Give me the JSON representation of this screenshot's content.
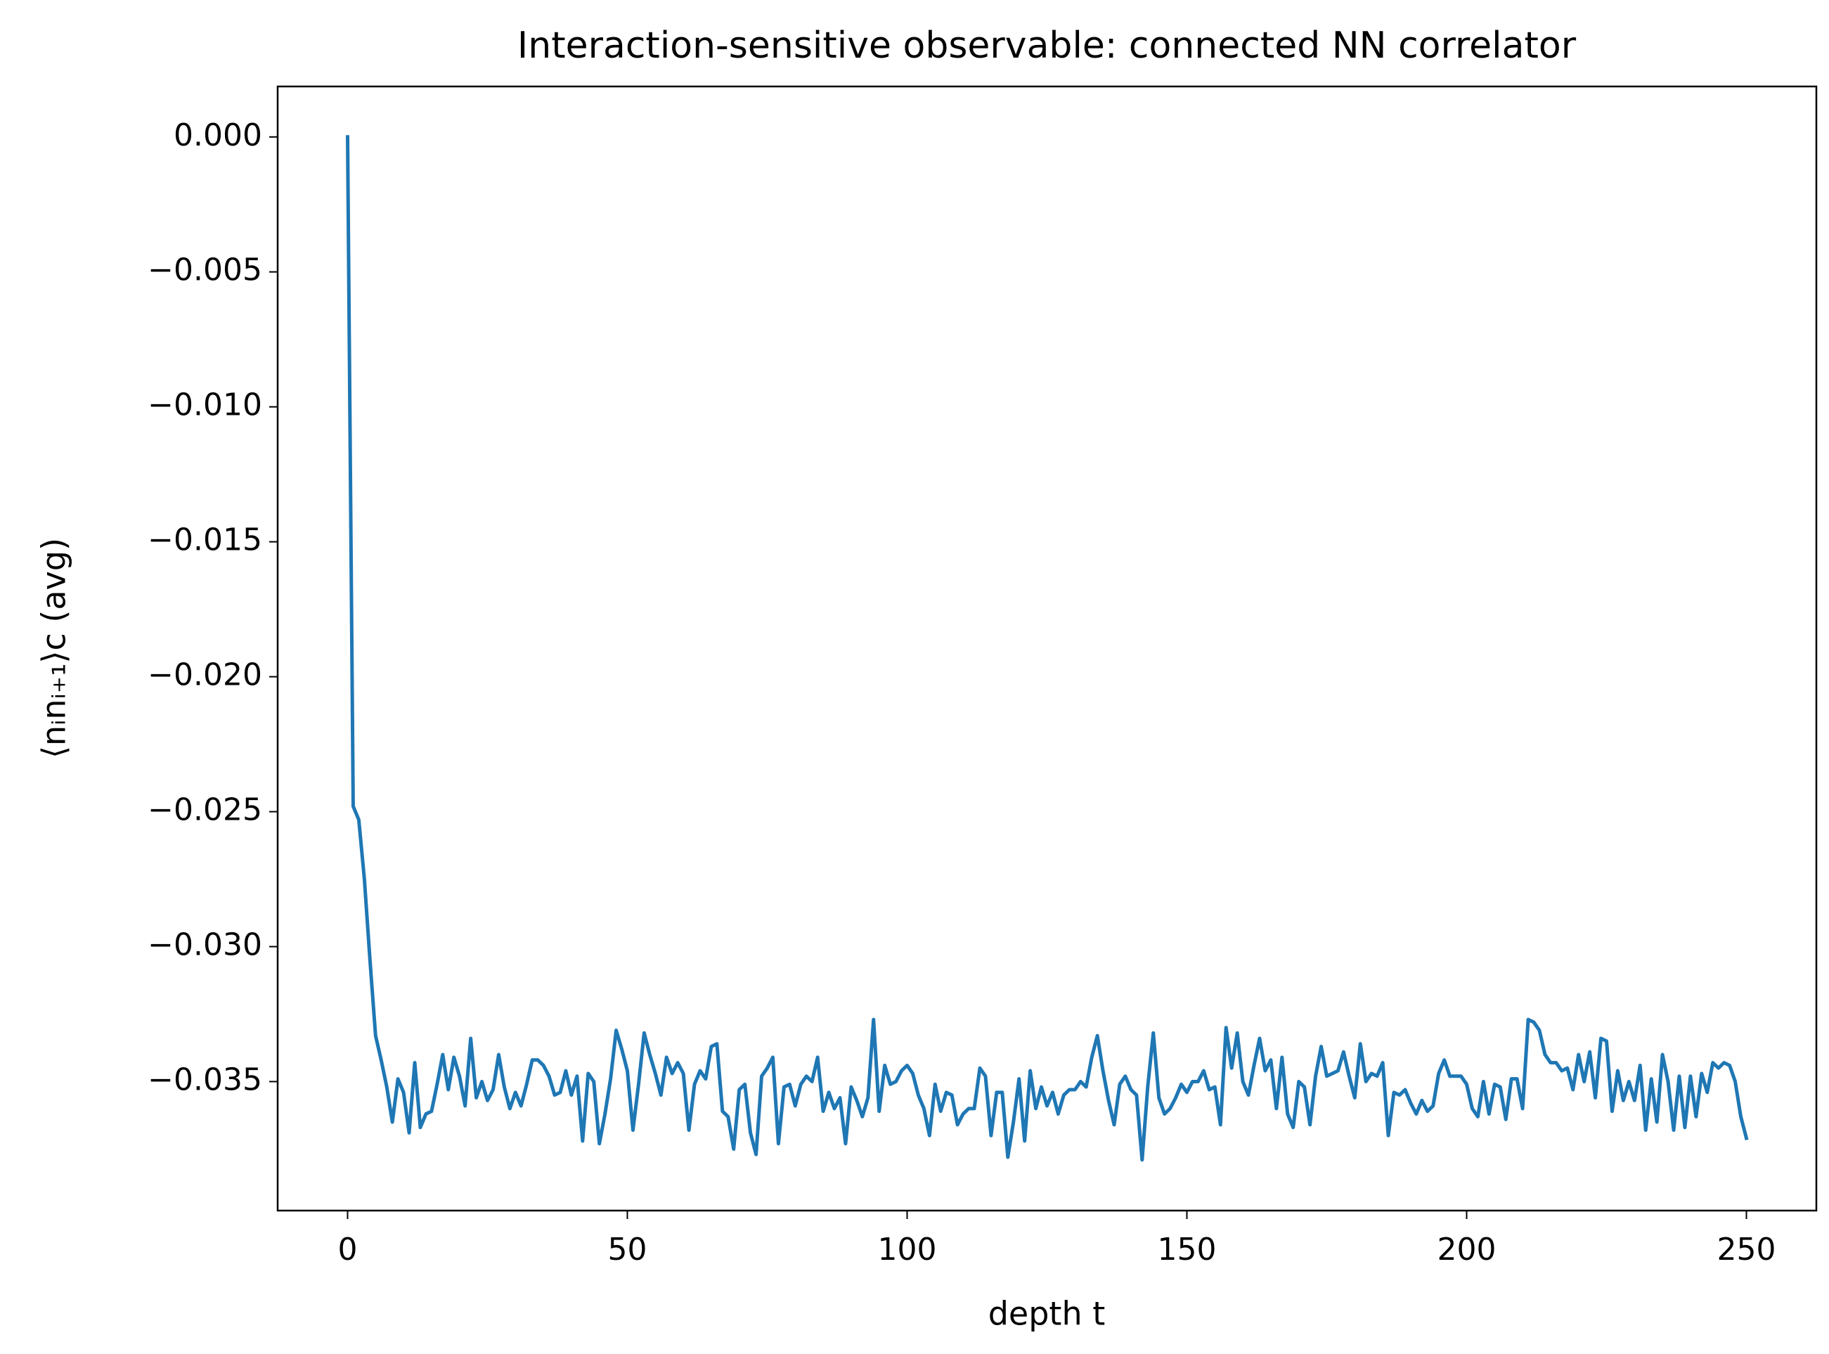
{
  "chart_data": {
    "type": "line",
    "title": "Interaction-sensitive observable: connected NN correlator",
    "xlabel": "depth t",
    "ylabel": "⟨nᵢnᵢ₊₁⟩c (avg)",
    "color": "#1f77b4",
    "xlim": [
      -12.5,
      262.5
    ],
    "ylim": [
      -0.03978,
      0.00187
    ],
    "xticks": [
      0,
      50,
      100,
      150,
      200,
      250
    ],
    "yticks": [
      {
        "value": 0,
        "label": "0.000"
      },
      {
        "value": -0.005,
        "label": "−0.005"
      },
      {
        "value": -0.01,
        "label": "−0.010"
      },
      {
        "value": -0.015,
        "label": "−0.015"
      },
      {
        "value": -0.02,
        "label": "−0.020"
      },
      {
        "value": -0.025,
        "label": "−0.025"
      },
      {
        "value": -0.03,
        "label": "−0.030"
      },
      {
        "value": -0.035,
        "label": "−0.035"
      }
    ],
    "x": [
      0,
      1,
      2,
      3,
      4,
      5,
      6,
      7,
      8,
      9,
      10,
      11,
      12,
      13,
      14,
      15,
      16,
      17,
      18,
      19,
      20,
      21,
      22,
      23,
      24,
      25,
      26,
      27,
      28,
      29,
      30,
      31,
      32,
      33,
      34,
      35,
      36,
      37,
      38,
      39,
      40,
      41,
      42,
      43,
      44,
      45,
      46,
      47,
      48,
      49,
      50,
      51,
      52,
      53,
      54,
      55,
      56,
      57,
      58,
      59,
      60,
      61,
      62,
      63,
      64,
      65,
      66,
      67,
      68,
      69,
      70,
      71,
      72,
      73,
      74,
      75,
      76,
      77,
      78,
      79,
      80,
      81,
      82,
      83,
      84,
      85,
      86,
      87,
      88,
      89,
      90,
      91,
      92,
      93,
      94,
      95,
      96,
      97,
      98,
      99,
      100,
      101,
      102,
      103,
      104,
      105,
      106,
      107,
      108,
      109,
      110,
      111,
      112,
      113,
      114,
      115,
      116,
      117,
      118,
      119,
      120,
      121,
      122,
      123,
      124,
      125,
      126,
      127,
      128,
      129,
      130,
      131,
      132,
      133,
      134,
      135,
      136,
      137,
      138,
      139,
      140,
      141,
      142,
      143,
      144,
      145,
      146,
      147,
      148,
      149,
      150,
      151,
      152,
      153,
      154,
      155,
      156,
      157,
      158,
      159,
      160,
      161,
      162,
      163,
      164,
      165,
      166,
      167,
      168,
      169,
      170,
      171,
      172,
      173,
      174,
      175,
      176,
      177,
      178,
      179,
      180,
      181,
      182,
      183,
      184,
      185,
      186,
      187,
      188,
      189,
      190,
      191,
      192,
      193,
      194,
      195,
      196,
      197,
      198,
      199,
      200,
      201,
      202,
      203,
      204,
      205,
      206,
      207,
      208,
      209,
      210,
      211,
      212,
      213,
      214,
      215,
      216,
      217,
      218,
      219,
      220,
      221,
      222,
      223,
      224,
      225,
      226,
      227,
      228,
      229,
      230,
      231,
      232,
      233,
      234,
      235,
      236,
      237,
      238,
      239,
      240,
      241,
      242,
      243,
      244,
      245,
      246,
      247,
      248,
      249,
      250
    ],
    "values": [
      0,
      -0.0248,
      -0.0253,
      -0.0275,
      -0.0305,
      -0.0333,
      -0.0342,
      -0.0352,
      -0.0365,
      -0.0349,
      -0.0354,
      -0.0369,
      -0.0343,
      -0.0367,
      -0.0362,
      -0.0361,
      -0.0351,
      -0.034,
      -0.0353,
      -0.0341,
      -0.0348,
      -0.0359,
      -0.0334,
      -0.0356,
      -0.035,
      -0.0357,
      -0.0353,
      -0.034,
      -0.0352,
      -0.036,
      -0.0354,
      -0.0359,
      -0.0351,
      -0.0342,
      -0.0342,
      -0.0344,
      -0.0348,
      -0.0355,
      -0.0354,
      -0.0346,
      -0.0355,
      -0.0348,
      -0.0372,
      -0.0347,
      -0.035,
      -0.0373,
      -0.0362,
      -0.0349,
      -0.0331,
      -0.0338,
      -0.0346,
      -0.0368,
      -0.0351,
      -0.0332,
      -0.034,
      -0.0347,
      -0.0355,
      -0.0341,
      -0.0347,
      -0.0343,
      -0.0347,
      -0.0368,
      -0.0351,
      -0.0346,
      -0.0349,
      -0.0337,
      -0.0336,
      -0.0361,
      -0.0363,
      -0.0375,
      -0.0353,
      -0.0351,
      -0.0369,
      -0.0377,
      -0.0348,
      -0.0345,
      -0.0341,
      -0.0373,
      -0.0352,
      -0.0351,
      -0.0359,
      -0.0351,
      -0.0348,
      -0.035,
      -0.0341,
      -0.0361,
      -0.0354,
      -0.036,
      -0.0356,
      -0.0373,
      -0.0352,
      -0.0357,
      -0.0363,
      -0.0356,
      -0.0327,
      -0.0361,
      -0.0344,
      -0.0351,
      -0.035,
      -0.0346,
      -0.0344,
      -0.0347,
      -0.0355,
      -0.036,
      -0.037,
      -0.0351,
      -0.0361,
      -0.0354,
      -0.0355,
      -0.0366,
      -0.0362,
      -0.036,
      -0.036,
      -0.0345,
      -0.0348,
      -0.037,
      -0.0354,
      -0.0354,
      -0.0378,
      -0.0365,
      -0.0349,
      -0.0372,
      -0.0346,
      -0.036,
      -0.0352,
      -0.0359,
      -0.0354,
      -0.0362,
      -0.0355,
      -0.0353,
      -0.0353,
      -0.035,
      -0.0352,
      -0.0341,
      -0.0333,
      -0.0346,
      -0.0357,
      -0.0366,
      -0.0351,
      -0.0348,
      -0.0353,
      -0.0355,
      -0.0379,
      -0.0352,
      -0.0332,
      -0.0356,
      -0.0362,
      -0.036,
      -0.0356,
      -0.0351,
      -0.0354,
      -0.035,
      -0.035,
      -0.0346,
      -0.0353,
      -0.0352,
      -0.0366,
      -0.033,
      -0.0345,
      -0.0332,
      -0.035,
      -0.0355,
      -0.0344,
      -0.0334,
      -0.0346,
      -0.0342,
      -0.036,
      -0.0341,
      -0.0362,
      -0.0367,
      -0.035,
      -0.0352,
      -0.0366,
      -0.0348,
      -0.0337,
      -0.0348,
      -0.0347,
      -0.0346,
      -0.0339,
      -0.0348,
      -0.0356,
      -0.0336,
      -0.035,
      -0.0347,
      -0.0348,
      -0.0343,
      -0.037,
      -0.0354,
      -0.0355,
      -0.0353,
      -0.0358,
      -0.0362,
      -0.0357,
      -0.0361,
      -0.0359,
      -0.0347,
      -0.0342,
      -0.0348,
      -0.0348,
      -0.0348,
      -0.0351,
      -0.036,
      -0.0363,
      -0.035,
      -0.0362,
      -0.0351,
      -0.0352,
      -0.0364,
      -0.0349,
      -0.0349,
      -0.036,
      -0.0327,
      -0.0328,
      -0.0331,
      -0.034,
      -0.0343,
      -0.0343,
      -0.0346,
      -0.0345,
      -0.0353,
      -0.034,
      -0.035,
      -0.0339,
      -0.0356,
      -0.0334,
      -0.0335,
      -0.0361,
      -0.0346,
      -0.0357,
      -0.035,
      -0.0357,
      -0.0344,
      -0.0368,
      -0.0349,
      -0.0365,
      -0.034,
      -0.035,
      -0.0368,
      -0.0348,
      -0.0367,
      -0.0348,
      -0.0363,
      -0.0347,
      -0.0354,
      -0.0343,
      -0.0345,
      -0.0343,
      -0.0344,
      -0.035,
      -0.0363,
      -0.0371
    ]
  }
}
